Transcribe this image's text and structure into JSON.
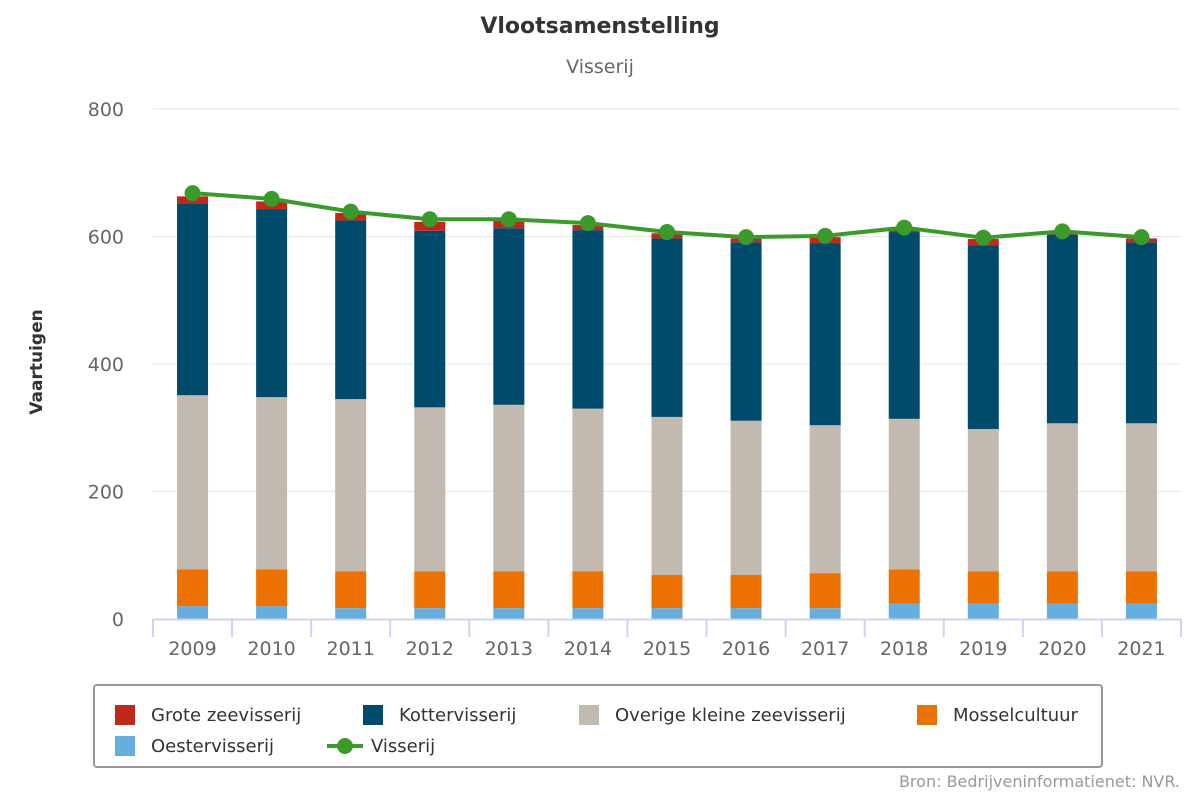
{
  "header": {
    "title": "Vlootsamenstelling",
    "subtitle": "Visserij"
  },
  "credits": "Bron: Bedrijveninformatienet: NVR.",
  "colors": {
    "grote": "#c0281a",
    "kotter": "#004a6b",
    "overige": "#c2b9b0",
    "mossel": "#ed7100",
    "oester": "#66aede",
    "visserij": "#3c9a2d",
    "grid": "#e6e6e6",
    "axis": "#ccd6eb"
  },
  "legend": {
    "items": [
      {
        "label": "Grote zeevisserij"
      },
      {
        "label": "Kottervisserij"
      },
      {
        "label": "Overige kleine zeevisserij"
      },
      {
        "label": "Mosselcultuur"
      },
      {
        "label": "Oestervisserij"
      },
      {
        "label": "Visserij"
      }
    ]
  },
  "chart_data": {
    "type": "bar",
    "stacked": true,
    "title": "Vlootsamenstelling",
    "subtitle": "Visserij",
    "ylabel": "Vaartuigen",
    "xlabel": "",
    "ylim": [
      0,
      800
    ],
    "yticks": [
      0,
      200,
      400,
      600,
      800
    ],
    "grid": true,
    "legend_position": "bottom",
    "categories": [
      "2009",
      "2010",
      "2011",
      "2012",
      "2013",
      "2014",
      "2015",
      "2016",
      "2017",
      "2018",
      "2019",
      "2020",
      "2021"
    ],
    "series": [
      {
        "name": "Oestervisserij",
        "type": "bar",
        "values": [
          20,
          20,
          17,
          17,
          17,
          17,
          17,
          17,
          17,
          24,
          24,
          24,
          24
        ]
      },
      {
        "name": "Mosselcultuur",
        "type": "bar",
        "values": [
          58,
          58,
          58,
          58,
          58,
          58,
          52,
          52,
          55,
          54,
          51,
          51,
          51
        ]
      },
      {
        "name": "Overige kleine zeevisserij",
        "type": "bar",
        "values": [
          273,
          270,
          270,
          257,
          261,
          255,
          248,
          242,
          232,
          236,
          223,
          232,
          232
        ]
      },
      {
        "name": "Kottervisserij",
        "type": "bar",
        "values": [
          300,
          295,
          280,
          277,
          277,
          280,
          280,
          280,
          285,
          293,
          288,
          296,
          284
        ]
      },
      {
        "name": "Grote zeevisserij",
        "type": "bar",
        "values": [
          12,
          12,
          12,
          14,
          12,
          8,
          8,
          6,
          10,
          6,
          10,
          4,
          6
        ]
      },
      {
        "name": "Visserij",
        "type": "line",
        "values": [
          668,
          659,
          639,
          627,
          627,
          621,
          607,
          599,
          601,
          614,
          598,
          608,
          599
        ]
      }
    ]
  }
}
